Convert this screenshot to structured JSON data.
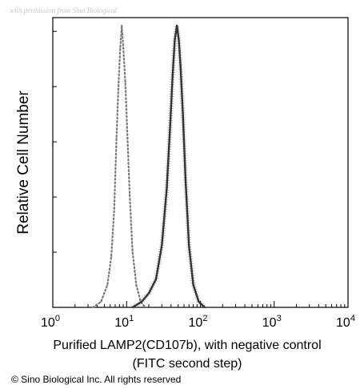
{
  "watermark": "with permission from Sino Biological",
  "chart_data": {
    "type": "area",
    "title": "",
    "xlabel": "Purified LAMP2(CD107b), with negative control",
    "xlabel_line2": "(FITC second step)",
    "ylabel": "Relative Cell Number",
    "x_scale": "log",
    "xlim": [
      1,
      10000
    ],
    "ylim": [
      0,
      1.0
    ],
    "x_ticks": [
      {
        "value": 1,
        "base": "10",
        "exp": "0"
      },
      {
        "value": 10,
        "base": "10",
        "exp": "1"
      },
      {
        "value": 100,
        "base": "10",
        "exp": "2"
      },
      {
        "value": 1000,
        "base": "10",
        "exp": "3"
      },
      {
        "value": 10000,
        "base": "10",
        "exp": "4"
      }
    ],
    "y_tick_label_visible": false,
    "grid": false,
    "series": [
      {
        "style": "dotted",
        "color": "#777777",
        "x": [
          3.5,
          4.5,
          5.5,
          6.2,
          6.8,
          7.3,
          7.8,
          8.2,
          8.6,
          9.0,
          9.6,
          10.3,
          11.0,
          12.0,
          13.5,
          15.5,
          18.0
        ],
        "y": [
          0.0,
          0.02,
          0.08,
          0.18,
          0.35,
          0.6,
          0.8,
          0.92,
          1.0,
          0.93,
          0.8,
          0.6,
          0.4,
          0.2,
          0.08,
          0.02,
          0.0
        ]
      },
      {
        "style": "solid",
        "color": "#333333",
        "x": [
          12.0,
          16.0,
          20.0,
          25.0,
          30.0,
          35.0,
          39.0,
          42.0,
          45.0,
          48.0,
          51.0,
          54.0,
          58.0,
          63.0,
          70.0,
          80.0,
          95.0,
          115.0
        ],
        "y": [
          0.0,
          0.02,
          0.05,
          0.1,
          0.22,
          0.42,
          0.65,
          0.82,
          0.95,
          1.0,
          0.95,
          0.85,
          0.68,
          0.45,
          0.22,
          0.08,
          0.02,
          0.0
        ]
      }
    ]
  },
  "copyright": "© Sino Biological Inc. All rights reserved"
}
